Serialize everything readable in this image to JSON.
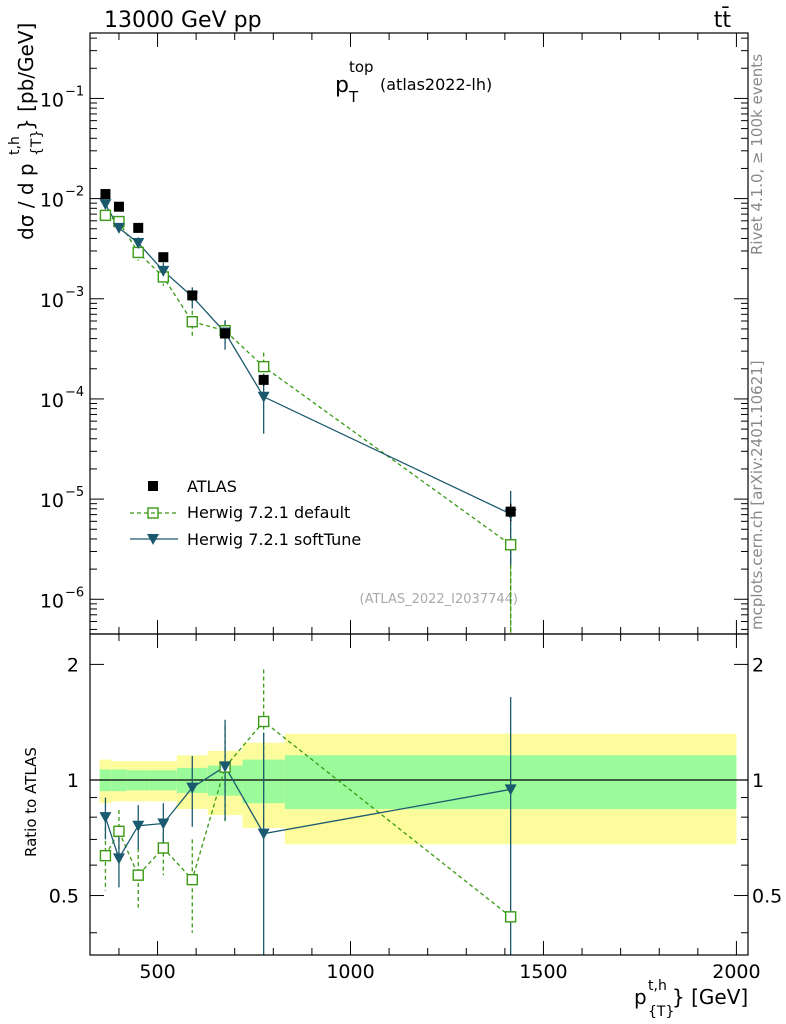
{
  "header": {
    "energy": "13000 GeV pp",
    "process": "tt̄"
  },
  "title": {
    "main": "p",
    "sup": "top",
    "sub": "T",
    "tag": "(atlas2022-lh)"
  },
  "side_labels": {
    "rivet": "Rivet 4.1.0, ≥ 100k events",
    "mcplots": "mcplots.cern.ch [arXiv:2401.10621]"
  },
  "watermark": "(ATLAS_2022_I2037744)",
  "legend": {
    "atlas": "ATLAS",
    "default": "Herwig 7.2.1 default",
    "softtune": "Herwig 7.2.1 softTune"
  },
  "colors": {
    "atlas": "#000000",
    "default": "#3a9a14",
    "softtune": "#1b5a6e",
    "band_inner": "#9bfb9b",
    "band_outer": "#fcfc9c"
  },
  "chart_data": {
    "type": "scatter",
    "xlabel": "p_{T}^{t,h} [GeV]",
    "ylabel_top": "dσ / d p_{T}^{t,h} [pb/GeV]",
    "ylabel_bottom": "Ratio to ATLAS",
    "xlim": [
      325,
      2030
    ],
    "ylim_top": [
      4.5e-07,
      0.45
    ],
    "ylim_bottom": [
      0.35,
      2.4
    ],
    "x_ticks": [
      500,
      1000,
      1500,
      2000
    ],
    "x_tick_labels": [
      "500",
      "1000",
      "1500",
      "2000"
    ],
    "y_ticks_top": [
      1e-06,
      1e-05,
      0.0001,
      0.001,
      0.01,
      0.1
    ],
    "y_tick_labels_top": [
      {
        "base": "10",
        "exp": "−6"
      },
      {
        "base": "10",
        "exp": "−5"
      },
      {
        "base": "10",
        "exp": "−4"
      },
      {
        "base": "10",
        "exp": "−3"
      },
      {
        "base": "10",
        "exp": "−2"
      },
      {
        "base": "10",
        "exp": "−1"
      }
    ],
    "y_ticks_bottom": [
      0.5,
      1,
      2
    ],
    "y_tick_labels_bottom": [
      "0.5",
      "1",
      "2"
    ],
    "bins": [
      {
        "lo": 350,
        "hi": 380
      },
      {
        "lo": 380,
        "hi": 420
      },
      {
        "lo": 420,
        "hi": 480
      },
      {
        "lo": 480,
        "hi": 550
      },
      {
        "lo": 550,
        "hi": 630
      },
      {
        "lo": 630,
        "hi": 720
      },
      {
        "lo": 720,
        "hi": 830
      },
      {
        "lo": 830,
        "hi": 2000
      }
    ],
    "ratio_band_inner": [
      0.065,
      0.065,
      0.06,
      0.06,
      0.075,
      0.09,
      0.13,
      0.16
    ],
    "ratio_band_outer": [
      0.13,
      0.12,
      0.12,
      0.12,
      0.16,
      0.19,
      0.25,
      0.32
    ],
    "series": [
      {
        "name": "ATLAS",
        "x": [
          365,
          400,
          450,
          515,
          590,
          675,
          775,
          1415
        ],
        "y": [
          0.0111,
          0.0083,
          0.0051,
          0.0026,
          0.00108,
          0.00045,
          0.000155,
          7.5e-06
        ],
        "yerr_up": [
          0.0,
          0.0,
          0.0,
          0.0,
          5e-05,
          4e-05,
          2e-05,
          1.5e-06
        ],
        "yerr_dn": [
          0.0,
          0.0,
          0.0,
          0.0,
          5e-05,
          4e-05,
          2e-05,
          1.5e-06
        ]
      },
      {
        "name": "Herwig 7.2.1 default",
        "x": [
          365,
          400,
          450,
          515,
          590,
          675,
          775,
          1415
        ],
        "y": [
          0.0068,
          0.0059,
          0.0029,
          0.00165,
          0.00059,
          0.00048,
          0.00021,
          3.5e-06
        ],
        "yerr_up": [
          0.0008,
          0.0007,
          0.0005,
          0.0003,
          0.00017,
          0.00012,
          8e-05,
          3.5e-06
        ],
        "yerr_dn": [
          0.0008,
          0.0007,
          0.0005,
          0.0003,
          0.00017,
          0.00012,
          8e-05,
          3.4e-06
        ],
        "ratio": [
          0.635,
          0.735,
          0.565,
          0.665,
          0.55,
          1.08,
          1.42,
          0.44
        ],
        "ratio_err_up": [
          0.12,
          0.1,
          0.1,
          0.1,
          0.15,
          0.3,
          0.52,
          0.0
        ],
        "ratio_err_dn": [
          0.12,
          0.1,
          0.1,
          0.1,
          0.15,
          0.3,
          0.52,
          0.0
        ]
      },
      {
        "name": "Herwig 7.2.1 softTune",
        "x": [
          365,
          400,
          450,
          515,
          590,
          675,
          775,
          1415
        ],
        "y": [
          0.0088,
          0.0051,
          0.0036,
          0.0019,
          0.00105,
          0.00046,
          0.000105,
          7.1e-06
        ],
        "yerr_up": [
          0.0006,
          0.0005,
          0.0005,
          0.0004,
          0.00025,
          0.00015,
          6e-05,
          5e-06
        ],
        "yerr_dn": [
          0.0006,
          0.0005,
          0.0005,
          0.0004,
          0.00025,
          0.00015,
          6e-05,
          4.9e-06
        ],
        "ratio": [
          0.8,
          0.625,
          0.76,
          0.77,
          0.955,
          1.085,
          0.725,
          0.945
        ],
        "ratio_err_up": [
          0.1,
          0.1,
          0.1,
          0.1,
          0.2,
          0.35,
          0.6,
          0.7
        ],
        "ratio_err_dn": [
          0.1,
          0.1,
          0.1,
          0.1,
          0.2,
          0.3,
          0.4,
          0.6
        ]
      }
    ]
  }
}
